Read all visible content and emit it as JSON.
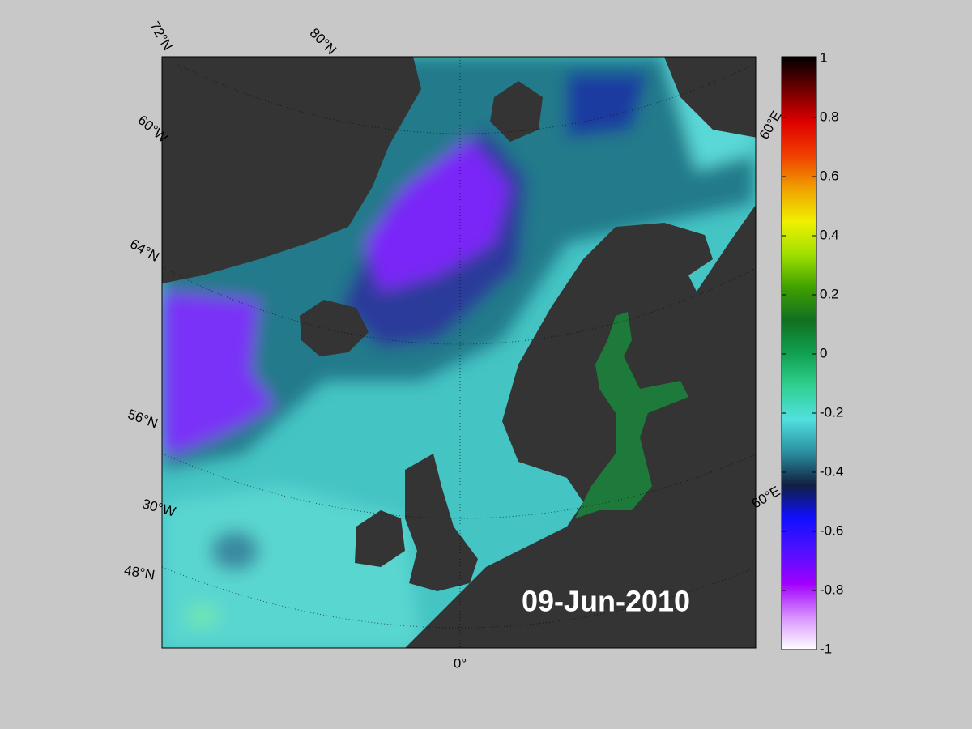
{
  "map": {
    "date": "09-Jun-2010",
    "labels": [
      {
        "text": "72°N",
        "angle": 60
      },
      {
        "text": "80°N",
        "angle": 45
      },
      {
        "text": "60°W",
        "angle": 40
      },
      {
        "text": "64°N",
        "angle": 30
      },
      {
        "text": "56°N",
        "angle": 20
      },
      {
        "text": "30°W",
        "angle": 15
      },
      {
        "text": "48°N",
        "angle": 10
      },
      {
        "text": "60°E",
        "angle": -60
      },
      {
        "text": "60°E",
        "angle": -30
      },
      {
        "text": "0°",
        "angle": 0
      }
    ]
  },
  "colorbar": {
    "lim": [
      -1,
      1
    ],
    "ticks": [
      1,
      0.8,
      0.6,
      0.4,
      0.2,
      0,
      -0.2,
      -0.4,
      -0.6,
      -0.8,
      -1
    ],
    "colors": [
      "#ffffff",
      "#d890ff",
      "#a000ff",
      "#5010ff",
      "#1010ff",
      "#102040",
      "#2a90a0",
      "#50e0e0",
      "#30d090",
      "#10a050",
      "#107020",
      "#40a000",
      "#a0e000",
      "#f0f000",
      "#f0a000",
      "#f04000",
      "#e00000",
      "#700000",
      "#000000"
    ]
  }
}
